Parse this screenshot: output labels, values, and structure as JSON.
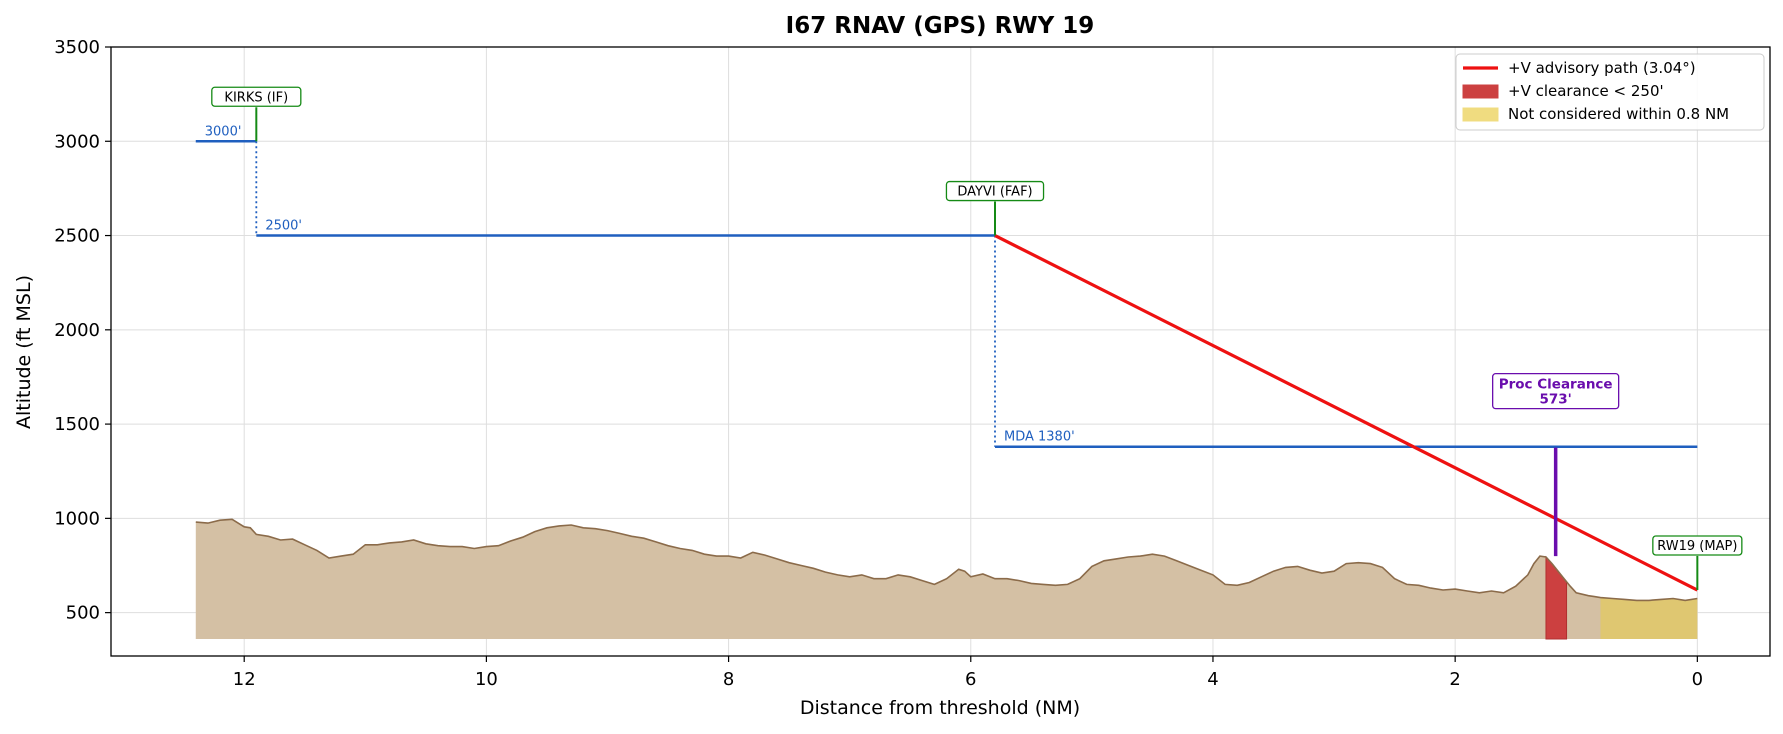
{
  "chart_data": {
    "type": "line",
    "title": "I67  RNAV (GPS) RWY 19",
    "xlabel": "Distance from threshold (NM)",
    "ylabel": "Altitude (ft MSL)",
    "xlim": [
      13.1,
      -0.6
    ],
    "ylim": [
      270,
      3500
    ],
    "x_ticks": [
      12,
      10,
      8,
      6,
      4,
      2,
      0
    ],
    "y_ticks": [
      500,
      1000,
      1500,
      2000,
      2500,
      3000,
      3500
    ],
    "x_tick_labels": [
      "12",
      "10",
      "8",
      "6",
      "4",
      "2",
      "0"
    ],
    "y_tick_labels": [
      "500",
      "1000",
      "1500",
      "2000",
      "2500",
      "3000",
      "3500"
    ],
    "grid": true,
    "legend_position": "top-right",
    "colors": {
      "terrain_fill": "#d4c0a4",
      "terrain_line": "#8b6b4a",
      "segment": "#1f5fbf",
      "vpath": "#ee1111",
      "fix": "#158a15",
      "clearance": "#cc4040",
      "not_considered": "#e0c868",
      "proc_clearance": "#6a0dad"
    },
    "legend": [
      {
        "label": "+V advisory path (3.04°)",
        "kind": "line",
        "color": "#ee1111"
      },
      {
        "label": "+V clearance < 250'",
        "kind": "patch",
        "color": "#cc4040"
      },
      {
        "label": "Not considered within 0.8 NM",
        "kind": "patch",
        "color": "#f0dc80"
      }
    ],
    "series": [
      {
        "name": "+V advisory path (3.04°)",
        "x": [
          5.8,
          0.0
        ],
        "y": [
          2500,
          620
        ]
      }
    ],
    "segments": [
      {
        "label": "3000'",
        "x_start": 12.4,
        "x_end": 11.9,
        "alt": 3000
      },
      {
        "label": "2500'",
        "x_start": 11.9,
        "x_end": 5.8,
        "alt": 2500
      },
      {
        "label": "MDA 1380'",
        "x_start": 5.8,
        "x_end": 0.0,
        "alt": 1380
      }
    ],
    "step_downs": [
      {
        "x": 11.9,
        "from": 3000,
        "to": 2500
      },
      {
        "x": 5.8,
        "from": 2500,
        "to": 1380
      }
    ],
    "fixes": [
      {
        "label": "KIRKS (IF)",
        "x": 11.9,
        "alt": 3000
      },
      {
        "label": "DAYVI (FAF)",
        "x": 5.8,
        "alt": 2500
      },
      {
        "label": "RW19 (MAP)",
        "x": 0.0,
        "alt": 620
      }
    ],
    "proc_clearance": {
      "label": "Proc Clearance",
      "value": "573'",
      "x": 1.17,
      "bottom": 800,
      "top": 1375
    },
    "clearance_region": {
      "x_start": 1.25,
      "x_end": 1.08,
      "peak": 800
    },
    "not_considered_region": {
      "x_start": 0.8,
      "x_end": 0.0
    },
    "terrain_base": 360,
    "terrain": {
      "x": [
        12.4,
        12.3,
        12.2,
        12.1,
        12.05,
        12.0,
        11.95,
        11.9,
        11.8,
        11.7,
        11.6,
        11.5,
        11.4,
        11.3,
        11.2,
        11.1,
        11.0,
        10.9,
        10.8,
        10.7,
        10.6,
        10.5,
        10.4,
        10.3,
        10.2,
        10.1,
        10.0,
        9.9,
        9.8,
        9.7,
        9.6,
        9.5,
        9.4,
        9.3,
        9.2,
        9.1,
        9.0,
        8.9,
        8.8,
        8.7,
        8.6,
        8.5,
        8.4,
        8.3,
        8.2,
        8.1,
        8.0,
        7.9,
        7.8,
        7.7,
        7.6,
        7.5,
        7.4,
        7.3,
        7.2,
        7.1,
        7.0,
        6.9,
        6.8,
        6.7,
        6.6,
        6.5,
        6.4,
        6.3,
        6.2,
        6.1,
        6.05,
        6.0,
        5.9,
        5.8,
        5.7,
        5.6,
        5.5,
        5.4,
        5.3,
        5.2,
        5.1,
        5.0,
        4.9,
        4.8,
        4.7,
        4.6,
        4.5,
        4.4,
        4.3,
        4.2,
        4.1,
        4.0,
        3.9,
        3.8,
        3.7,
        3.6,
        3.5,
        3.4,
        3.3,
        3.2,
        3.1,
        3.0,
        2.9,
        2.8,
        2.7,
        2.6,
        2.5,
        2.4,
        2.3,
        2.2,
        2.1,
        2.0,
        1.9,
        1.8,
        1.7,
        1.6,
        1.5,
        1.4,
        1.35,
        1.3,
        1.25,
        1.2,
        1.15,
        1.1,
        1.05,
        1.0,
        0.9,
        0.85,
        0.8,
        0.7,
        0.6,
        0.5,
        0.4,
        0.3,
        0.2,
        0.1,
        0.0
      ],
      "y": [
        980,
        975,
        990,
        995,
        975,
        955,
        950,
        915,
        905,
        885,
        890,
        860,
        830,
        790,
        800,
        810,
        860,
        860,
        870,
        875,
        885,
        865,
        855,
        850,
        850,
        840,
        850,
        855,
        880,
        900,
        930,
        950,
        960,
        965,
        950,
        945,
        935,
        920,
        905,
        895,
        875,
        855,
        840,
        830,
        810,
        800,
        800,
        790,
        820,
        805,
        785,
        765,
        750,
        735,
        715,
        700,
        690,
        700,
        680,
        680,
        700,
        690,
        670,
        650,
        680,
        730,
        720,
        690,
        705,
        680,
        680,
        670,
        655,
        650,
        645,
        650,
        680,
        745,
        775,
        785,
        795,
        800,
        810,
        800,
        775,
        750,
        725,
        700,
        650,
        645,
        660,
        690,
        720,
        740,
        745,
        725,
        710,
        720,
        760,
        765,
        760,
        740,
        680,
        650,
        645,
        630,
        620,
        625,
        615,
        605,
        615,
        605,
        640,
        700,
        760,
        800,
        795,
        760,
        720,
        680,
        640,
        605,
        590,
        585,
        580,
        575,
        570,
        565,
        565,
        570,
        575,
        565,
        575
      ]
    }
  }
}
